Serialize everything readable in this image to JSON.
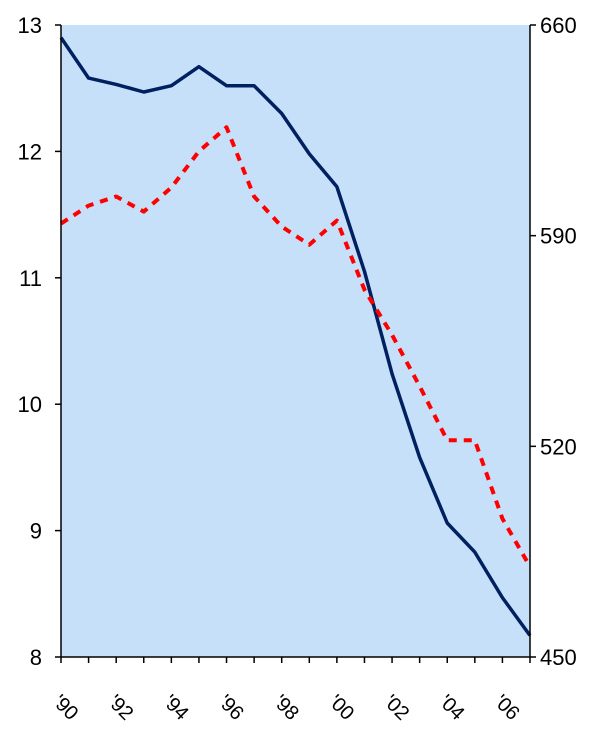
{
  "chart_data": {
    "type": "line",
    "title": "",
    "xlabel": "",
    "ylabel": "",
    "x": [
      "1990",
      "1991",
      "1992",
      "1993",
      "1994",
      "1995",
      "1996",
      "1997",
      "1998",
      "1999",
      "2000",
      "2001",
      "2002",
      "2003",
      "2004",
      "2005",
      "2006",
      "2007"
    ],
    "x_tick_labels": [
      {
        "x": "1990",
        "label": "'90"
      },
      {
        "x": "1992",
        "label": "'92"
      },
      {
        "x": "1994",
        "label": "'94"
      },
      {
        "x": "1996",
        "label": "'96"
      },
      {
        "x": "1998",
        "label": "'98"
      },
      {
        "x": "2000",
        "label": "'00"
      },
      {
        "x": "2002",
        "label": "'02"
      },
      {
        "x": "2004",
        "label": "'04"
      },
      {
        "x": "2006",
        "label": "'06"
      }
    ],
    "y_left": {
      "ylim": [
        8,
        13
      ],
      "ticks": [
        "8",
        "9",
        "10",
        "11",
        "12",
        "13"
      ]
    },
    "y_right": {
      "ylim": [
        450,
        660
      ],
      "ticks": [
        "450",
        "520",
        "590",
        "660"
      ]
    },
    "series": [
      {
        "axis": "left",
        "color": "#002060",
        "style": "solid",
        "values": [
          12.9,
          12.58,
          12.53,
          12.47,
          12.52,
          12.67,
          12.52,
          12.52,
          12.3,
          11.98,
          11.72,
          11.05,
          10.24,
          9.58,
          9.06,
          8.83,
          8.47,
          8.17
        ]
      },
      {
        "axis": "right",
        "color": "#ff0000",
        "style": "dashed",
        "values": [
          594,
          600,
          603,
          598,
          606,
          618,
          626,
          603,
          593,
          587,
          595,
          572,
          557,
          540,
          522,
          522,
          496,
          480
        ]
      }
    ],
    "plot_background": "#c6e0fa",
    "grid": false,
    "legend": "none"
  }
}
